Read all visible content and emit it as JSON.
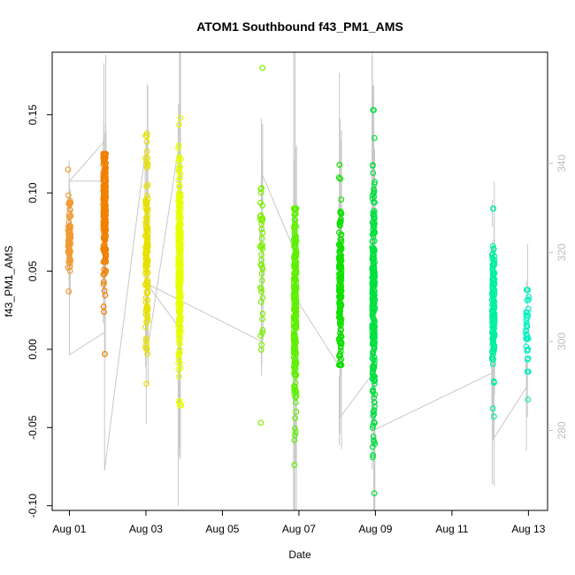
{
  "chart_data": {
    "type": "scatter",
    "title": "ATOM1 Southbound f43_PM1_AMS",
    "xlabel": "Date",
    "ylabel": "f43_PM1_AMS",
    "x_ticks": [
      "Aug 01",
      "Aug 03",
      "Aug 05",
      "Aug 07",
      "Aug 09",
      "Aug 11",
      "Aug 13"
    ],
    "x_tick_days": [
      1,
      3,
      5,
      7,
      9,
      11,
      13
    ],
    "xlim": [
      0.55,
      13.5
    ],
    "ylim": [
      -0.103,
      0.19
    ],
    "y_ticks": [
      -0.1,
      -0.05,
      0.0,
      0.05,
      0.1,
      0.15
    ],
    "y_tick_labels": [
      "-0.10",
      "-0.05",
      "0.00",
      "0.05",
      "0.10",
      "0.15"
    ],
    "y2_ticks": [
      280,
      300,
      320,
      340
    ],
    "y2_tick_labels": [
      "280",
      "300",
      "320",
      "340"
    ],
    "y2lim": [
      262,
      365
    ],
    "y2_color": "#bdbdbd",
    "grid": false,
    "point_color_note": "points colored by time: orange to yellow to green to cyan",
    "color_stops": [
      "#f07d00",
      "#ffaa00",
      "#e8f000",
      "#b8ff00",
      "#5ff000",
      "#00e040",
      "#00f0c0"
    ],
    "clusters": [
      {
        "day": 1.0,
        "yrange": [
          0.037,
          0.115
        ],
        "center": 0.072,
        "spread": 0.012,
        "n": 70,
        "color": "#f09a30"
      },
      {
        "day": 1.92,
        "yrange": [
          -0.003,
          0.125
        ],
        "center": 0.09,
        "spread": 0.022,
        "n": 240,
        "color": "#f08000"
      },
      {
        "day": 3.02,
        "yrange": [
          -0.022,
          0.138
        ],
        "center": 0.06,
        "spread": 0.03,
        "n": 120,
        "color": "#e8e000"
      },
      {
        "day": 3.88,
        "yrange": [
          -0.036,
          0.148
        ],
        "center": 0.055,
        "spread": 0.032,
        "n": 260,
        "color": "#e8ff00"
      },
      {
        "day": 6.02,
        "yrange": [
          -0.047,
          0.18
        ],
        "center": 0.06,
        "spread": 0.03,
        "n": 40,
        "color": "#7ff000"
      },
      {
        "day": 6.9,
        "yrange": [
          -0.074,
          0.09
        ],
        "center": 0.03,
        "spread": 0.035,
        "n": 230,
        "color": "#5ff000"
      },
      {
        "day": 8.08,
        "yrange": [
          -0.01,
          0.118
        ],
        "center": 0.04,
        "spread": 0.028,
        "n": 160,
        "color": "#10e000"
      },
      {
        "day": 8.95,
        "yrange": [
          -0.092,
          0.153
        ],
        "center": 0.035,
        "spread": 0.04,
        "n": 240,
        "color": "#00e040"
      },
      {
        "day": 12.08,
        "yrange": [
          -0.043,
          0.09
        ],
        "center": 0.025,
        "spread": 0.02,
        "n": 150,
        "color": "#00f0a0"
      },
      {
        "day": 12.97,
        "yrange": [
          -0.032,
          0.038
        ],
        "center": 0.01,
        "spread": 0.014,
        "n": 30,
        "color": "#00f0c0"
      }
    ],
    "line_series": {
      "name": "",
      "axis": "right",
      "color": "#c8c8c8",
      "points": [
        [
          1.0,
          336
        ],
        [
          1.0,
          297
        ],
        [
          1.92,
          302
        ],
        [
          1.92,
          336
        ],
        [
          1.0,
          336
        ],
        [
          1.92,
          345
        ],
        [
          1.92,
          271
        ],
        [
          3.02,
          345
        ],
        [
          3.02,
          297
        ],
        [
          3.88,
          345
        ],
        [
          3.88,
          303
        ],
        [
          3.02,
          313
        ],
        [
          6.02,
          300
        ],
        [
          6.02,
          350
        ],
        [
          6.02,
          338
        ],
        [
          6.9,
          320
        ],
        [
          6.9,
          300
        ],
        [
          6.9,
          310
        ],
        [
          8.08,
          294
        ],
        [
          8.08,
          350
        ],
        [
          8.08,
          283
        ],
        [
          8.95,
          293
        ],
        [
          8.95,
          280
        ],
        [
          12.08,
          293
        ],
        [
          12.08,
          278
        ],
        [
          12.97,
          290
        ],
        [
          12.97,
          296
        ]
      ]
    }
  }
}
